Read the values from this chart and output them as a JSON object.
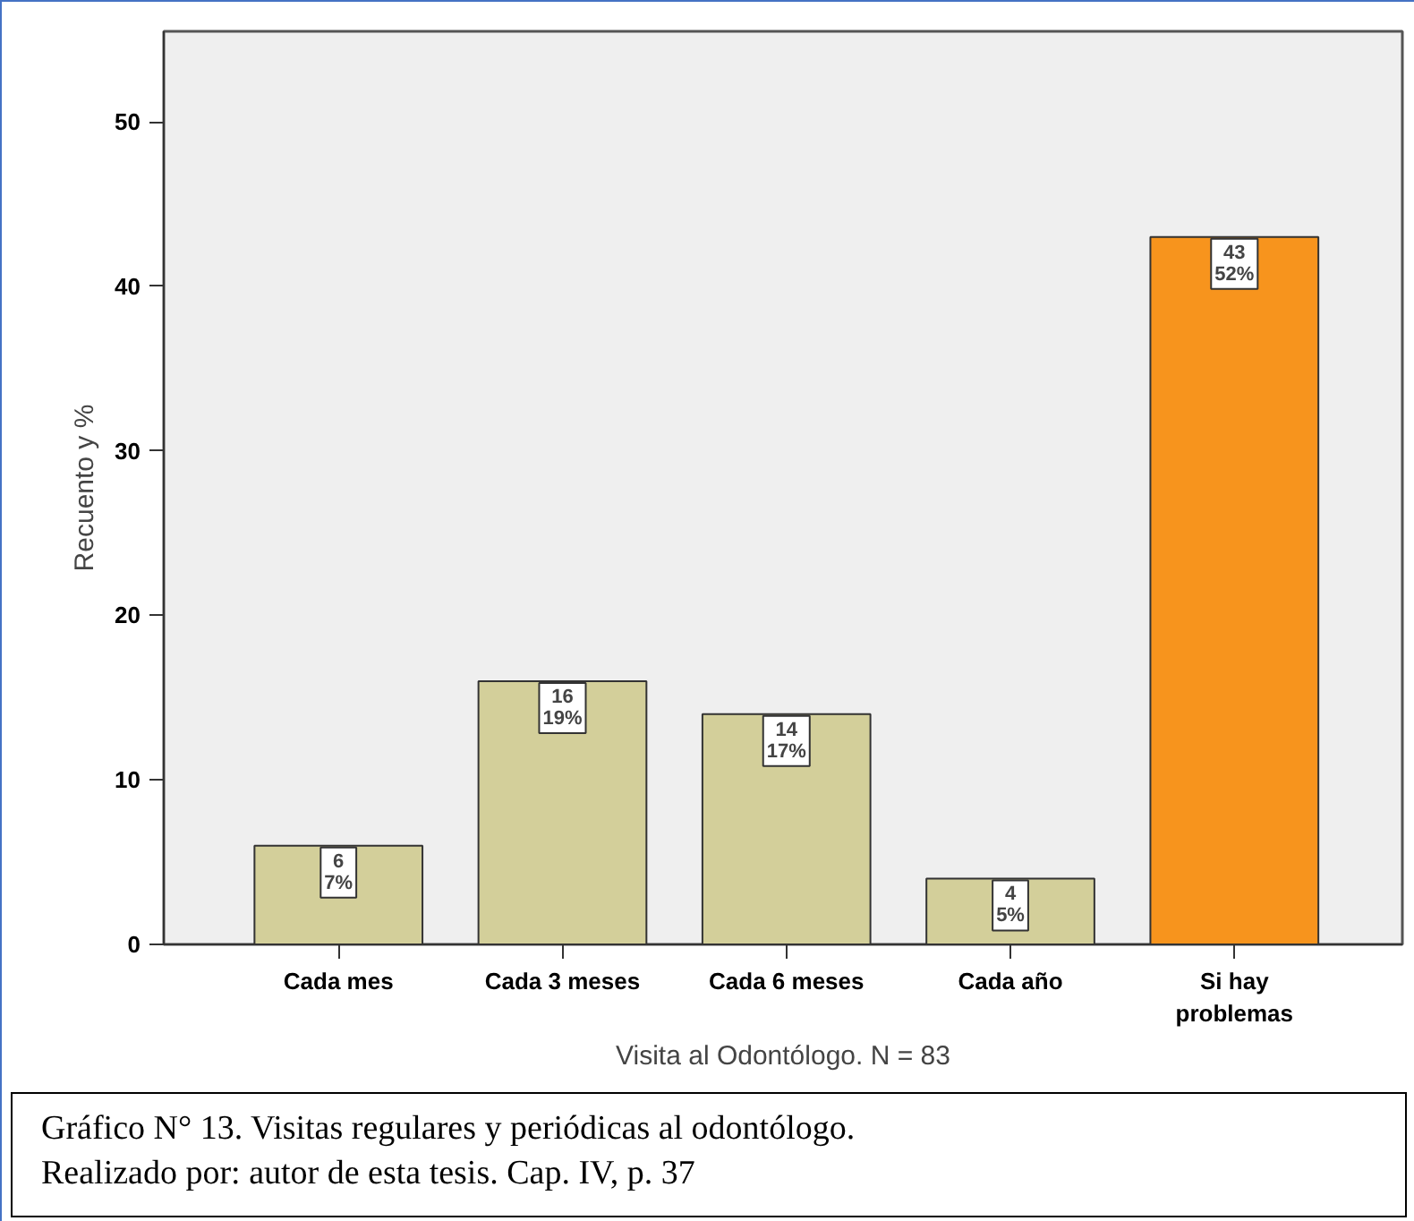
{
  "chart_data": {
    "type": "bar",
    "xlabel": "Visita al Odontólogo. N = 83",
    "ylabel": "Recuento y %",
    "categories": [
      "Cada mes",
      "Cada 3 meses",
      "Cada 6 meses",
      "Cada año",
      "Si hay\nproblemas"
    ],
    "values": [
      6,
      16,
      14,
      4,
      43
    ],
    "colors": [
      "#d3cf9a",
      "#d3cf9a",
      "#d3cf9a",
      "#d3cf9a",
      "#f7941d"
    ],
    "value_labels": [
      "6\n7%",
      "16\n19%",
      "14\n17%",
      "4\n5%",
      "43\n52%"
    ],
    "ylim": [
      0,
      55.5
    ],
    "yticks": [
      0,
      10,
      20,
      30,
      40,
      50
    ],
    "grid": false,
    "annotations": [
      "Gráfico N° 13. Visitas regulares y periódicas al odontólogo.",
      "Realizado por: autor de esta tesis. Cap. IV, p. 37"
    ]
  }
}
